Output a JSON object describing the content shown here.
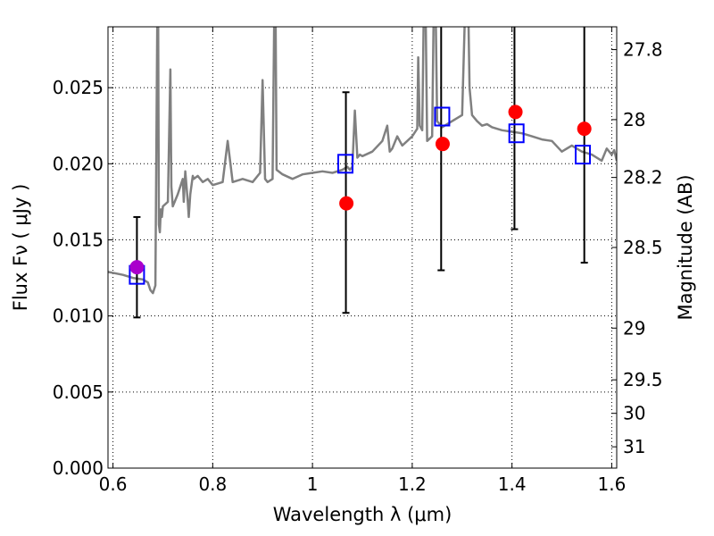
{
  "chart_data": {
    "type": "scatter",
    "title": "",
    "xlabel": "Wavelength  λ (μm)",
    "ylabel": "Flux  Fν  ( μJy )",
    "y2label": "Magnitude (AB)",
    "xlim": [
      0.59,
      1.61
    ],
    "ylim": [
      0.0,
      0.029
    ],
    "grid": true,
    "x_ticks": [
      {
        "value": 0.6,
        "label": "0.6"
      },
      {
        "value": 0.8,
        "label": "0.8"
      },
      {
        "value": 1.0,
        "label": "1"
      },
      {
        "value": 1.2,
        "label": "1.2"
      },
      {
        "value": 1.4,
        "label": "1.4"
      },
      {
        "value": 1.6,
        "label": "1.6"
      }
    ],
    "y_ticks": [
      {
        "value": 0.0,
        "label": "0.000"
      },
      {
        "value": 0.005,
        "label": "0.005"
      },
      {
        "value": 0.01,
        "label": "0.010"
      },
      {
        "value": 0.015,
        "label": "0.015"
      },
      {
        "value": 0.02,
        "label": "0.020"
      },
      {
        "value": 0.025,
        "label": "0.025"
      }
    ],
    "y2_ticks": [
      {
        "flux": 0.0275,
        "label": "27.8"
      },
      {
        "flux": 0.0229,
        "label": "28"
      },
      {
        "flux": 0.0191,
        "label": "28.2"
      },
      {
        "flux": 0.0145,
        "label": "28.5"
      },
      {
        "flux": 0.0092,
        "label": "29"
      },
      {
        "flux": 0.0058,
        "label": "29.5"
      },
      {
        "flux": 0.0036,
        "label": "30"
      },
      {
        "flux": 0.0014,
        "label": "31"
      }
    ],
    "colors": {
      "spectrum": "#808080",
      "observed": "#000000",
      "model": "#0000ff",
      "predicted": "#ff0000",
      "overlap": "#aa00cc"
    },
    "series": [
      {
        "type": "line",
        "key": "spectrum",
        "x": [
          0.59,
          0.62,
          0.64,
          0.66,
          0.67,
          0.675,
          0.68,
          0.685,
          0.69,
          0.692,
          0.694,
          0.696,
          0.698,
          0.7,
          0.71,
          0.715,
          0.717,
          0.72,
          0.73,
          0.74,
          0.742,
          0.745,
          0.75,
          0.752,
          0.755,
          0.76,
          0.762,
          0.77,
          0.78,
          0.79,
          0.8,
          0.82,
          0.83,
          0.84,
          0.86,
          0.88,
          0.895,
          0.9,
          0.905,
          0.91,
          0.92,
          0.925,
          0.928,
          0.932,
          0.94,
          0.96,
          0.98,
          1.0,
          1.02,
          1.04,
          1.06,
          1.07,
          1.075,
          1.08,
          1.085,
          1.09,
          1.095,
          1.1,
          1.12,
          1.14,
          1.15,
          1.155,
          1.16,
          1.17,
          1.175,
          1.18,
          1.19,
          1.2,
          1.21,
          1.212,
          1.215,
          1.22,
          1.225,
          1.23,
          1.24,
          1.245,
          1.25,
          1.26,
          1.27,
          1.28,
          1.29,
          1.3,
          1.31,
          1.315,
          1.32,
          1.33,
          1.34,
          1.35,
          1.36,
          1.38,
          1.4,
          1.42,
          1.44,
          1.46,
          1.48,
          1.5,
          1.52,
          1.54,
          1.56,
          1.58,
          1.59,
          1.6,
          1.605,
          1.61
        ],
        "y": [
          0.0129,
          0.0127,
          0.0125,
          0.0124,
          0.0122,
          0.0117,
          0.0115,
          0.012,
          0.035,
          0.016,
          0.0155,
          0.017,
          0.0165,
          0.0172,
          0.0175,
          0.0262,
          0.0185,
          0.0172,
          0.018,
          0.019,
          0.0175,
          0.0195,
          0.0175,
          0.0165,
          0.018,
          0.0192,
          0.019,
          0.0192,
          0.0188,
          0.019,
          0.0186,
          0.0188,
          0.0215,
          0.0188,
          0.019,
          0.0188,
          0.0194,
          0.0255,
          0.019,
          0.0188,
          0.019,
          0.035,
          0.0196,
          0.0195,
          0.0193,
          0.019,
          0.0193,
          0.0194,
          0.0195,
          0.0194,
          0.0196,
          0.0198,
          0.0196,
          0.0198,
          0.0235,
          0.0204,
          0.0206,
          0.0205,
          0.0208,
          0.0215,
          0.0225,
          0.0208,
          0.021,
          0.0218,
          0.0215,
          0.0212,
          0.0215,
          0.0218,
          0.0223,
          0.027,
          0.0225,
          0.0222,
          0.035,
          0.0215,
          0.0218,
          0.035,
          0.0228,
          0.0224,
          0.0226,
          0.0228,
          0.023,
          0.0232,
          0.035,
          0.025,
          0.0232,
          0.0228,
          0.0225,
          0.0226,
          0.0224,
          0.0222,
          0.0221,
          0.022,
          0.0218,
          0.0216,
          0.0215,
          0.0208,
          0.0212,
          0.0208,
          0.0206,
          0.0202,
          0.021,
          0.0206,
          0.0209,
          0.0202
        ]
      },
      {
        "type": "errorbar",
        "key": "observed",
        "x": [
          0.648,
          1.067,
          1.258,
          1.405,
          1.545
        ],
        "y": [
          0.0132,
          0.0174,
          0.0213,
          0.0234,
          0.0223
        ],
        "yerr_low": [
          0.0099,
          0.0102,
          0.013,
          0.0157,
          0.0135
        ],
        "yerr_high": [
          0.0165,
          0.0247,
          0.0295,
          0.0295,
          0.0295
        ]
      },
      {
        "type": "scatter",
        "key": "model",
        "marker": "square",
        "x": [
          0.648,
          1.066,
          1.26,
          1.409,
          1.542
        ],
        "y": [
          0.0127,
          0.02,
          0.0231,
          0.022,
          0.0206
        ]
      },
      {
        "type": "scatter",
        "key": "predicted",
        "marker": "circle",
        "x": [
          0.648,
          1.068,
          1.261,
          1.407,
          1.545
        ],
        "y": [
          0.0132,
          0.0174,
          0.0213,
          0.0234,
          0.0223
        ]
      }
    ]
  }
}
